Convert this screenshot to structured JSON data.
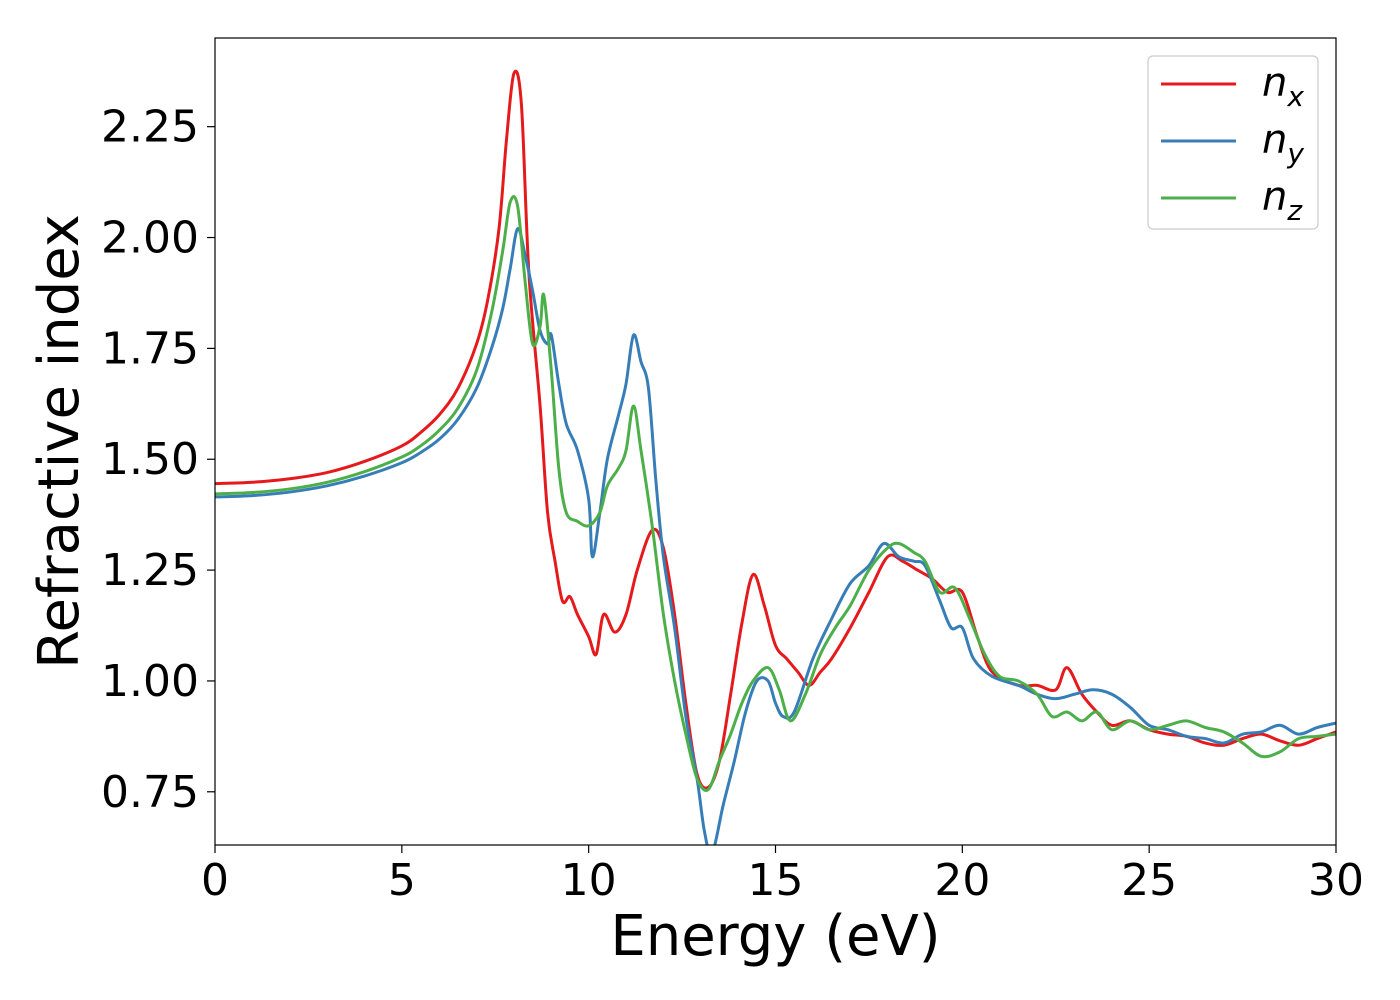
{
  "chart_data": {
    "type": "line",
    "title": "",
    "xlabel": "Energy (eV)",
    "ylabel": "Refractive index",
    "xlim": [
      0,
      30
    ],
    "ylim": [
      0.63,
      2.45
    ],
    "xticks": [
      0,
      5,
      10,
      15,
      20,
      25,
      30
    ],
    "yticks": [
      0.75,
      1.0,
      1.25,
      1.5,
      1.75,
      2.0,
      2.25
    ],
    "xtick_labels": [
      "0",
      "5",
      "10",
      "15",
      "20",
      "25",
      "30"
    ],
    "ytick_labels": [
      "0.75",
      "1.00",
      "1.25",
      "1.50",
      "1.75",
      "2.00",
      "2.25"
    ],
    "grid": false,
    "legend_position": "top-right",
    "series": [
      {
        "name": "n_x",
        "legend_main": "n",
        "legend_sub": "x",
        "color": "#e41a1c",
        "points": [
          [
            0,
            1.445
          ],
          [
            1,
            1.448
          ],
          [
            2,
            1.456
          ],
          [
            3,
            1.47
          ],
          [
            4,
            1.495
          ],
          [
            5,
            1.53
          ],
          [
            5.5,
            1.56
          ],
          [
            6,
            1.6
          ],
          [
            6.5,
            1.66
          ],
          [
            7,
            1.76
          ],
          [
            7.3,
            1.86
          ],
          [
            7.6,
            2.02
          ],
          [
            7.8,
            2.22
          ],
          [
            8.0,
            2.37
          ],
          [
            8.2,
            2.3
          ],
          [
            8.4,
            1.92
          ],
          [
            8.7,
            1.62
          ],
          [
            8.9,
            1.38
          ],
          [
            9.1,
            1.27
          ],
          [
            9.3,
            1.18
          ],
          [
            9.5,
            1.19
          ],
          [
            9.7,
            1.15
          ],
          [
            10.0,
            1.1
          ],
          [
            10.2,
            1.06
          ],
          [
            10.4,
            1.15
          ],
          [
            10.7,
            1.11
          ],
          [
            11.0,
            1.15
          ],
          [
            11.3,
            1.25
          ],
          [
            11.7,
            1.34
          ],
          [
            12.0,
            1.3
          ],
          [
            12.3,
            1.15
          ],
          [
            12.6,
            0.95
          ],
          [
            12.9,
            0.79
          ],
          [
            13.2,
            0.76
          ],
          [
            13.5,
            0.82
          ],
          [
            13.8,
            0.97
          ],
          [
            14.1,
            1.13
          ],
          [
            14.4,
            1.24
          ],
          [
            14.7,
            1.17
          ],
          [
            15.0,
            1.08
          ],
          [
            15.3,
            1.05
          ],
          [
            15.6,
            1.02
          ],
          [
            15.9,
            0.99
          ],
          [
            16.2,
            1.02
          ],
          [
            16.5,
            1.05
          ],
          [
            17.0,
            1.12
          ],
          [
            17.5,
            1.2
          ],
          [
            18.0,
            1.28
          ],
          [
            18.4,
            1.27
          ],
          [
            18.8,
            1.25
          ],
          [
            19.2,
            1.23
          ],
          [
            19.6,
            1.2
          ],
          [
            20.0,
            1.2
          ],
          [
            20.4,
            1.1
          ],
          [
            20.8,
            1.02
          ],
          [
            21.5,
            0.99
          ],
          [
            22.0,
            0.99
          ],
          [
            22.5,
            0.98
          ],
          [
            22.8,
            1.03
          ],
          [
            23.2,
            0.97
          ],
          [
            23.6,
            0.93
          ],
          [
            24.0,
            0.9
          ],
          [
            24.5,
            0.91
          ],
          [
            25.0,
            0.89
          ],
          [
            25.5,
            0.88
          ],
          [
            26.0,
            0.875
          ],
          [
            26.5,
            0.86
          ],
          [
            27.0,
            0.855
          ],
          [
            27.5,
            0.87
          ],
          [
            28.0,
            0.88
          ],
          [
            28.5,
            0.865
          ],
          [
            29.0,
            0.855
          ],
          [
            29.5,
            0.87
          ],
          [
            30,
            0.885
          ]
        ]
      },
      {
        "name": "n_y",
        "legend_main": "n",
        "legend_sub": "y",
        "color": "#377eb8",
        "points": [
          [
            0,
            1.415
          ],
          [
            1,
            1.418
          ],
          [
            2,
            1.426
          ],
          [
            3,
            1.44
          ],
          [
            4,
            1.462
          ],
          [
            5,
            1.492
          ],
          [
            5.5,
            1.515
          ],
          [
            6,
            1.545
          ],
          [
            6.5,
            1.59
          ],
          [
            7,
            1.66
          ],
          [
            7.4,
            1.75
          ],
          [
            7.7,
            1.84
          ],
          [
            7.9,
            1.93
          ],
          [
            8.1,
            2.02
          ],
          [
            8.3,
            1.96
          ],
          [
            8.5,
            1.88
          ],
          [
            8.7,
            1.79
          ],
          [
            8.9,
            1.76
          ],
          [
            9.0,
            1.78
          ],
          [
            9.2,
            1.67
          ],
          [
            9.4,
            1.58
          ],
          [
            9.7,
            1.52
          ],
          [
            10.0,
            1.41
          ],
          [
            10.1,
            1.28
          ],
          [
            10.3,
            1.38
          ],
          [
            10.5,
            1.5
          ],
          [
            10.8,
            1.6
          ],
          [
            11.0,
            1.67
          ],
          [
            11.2,
            1.78
          ],
          [
            11.4,
            1.72
          ],
          [
            11.6,
            1.66
          ],
          [
            11.8,
            1.45
          ],
          [
            12.0,
            1.28
          ],
          [
            12.3,
            1.12
          ],
          [
            12.6,
            0.92
          ],
          [
            12.9,
            0.78
          ],
          [
            13.1,
            0.66
          ],
          [
            13.3,
            0.61
          ],
          [
            13.6,
            0.72
          ],
          [
            13.9,
            0.82
          ],
          [
            14.2,
            0.93
          ],
          [
            14.5,
            1.0
          ],
          [
            14.8,
            1.0
          ],
          [
            15.0,
            0.95
          ],
          [
            15.2,
            0.92
          ],
          [
            15.5,
            0.93
          ],
          [
            16.0,
            1.05
          ],
          [
            16.5,
            1.14
          ],
          [
            17.0,
            1.22
          ],
          [
            17.5,
            1.26
          ],
          [
            17.9,
            1.31
          ],
          [
            18.3,
            1.28
          ],
          [
            18.7,
            1.27
          ],
          [
            19.0,
            1.26
          ],
          [
            19.4,
            1.18
          ],
          [
            19.7,
            1.12
          ],
          [
            20.0,
            1.12
          ],
          [
            20.3,
            1.05
          ],
          [
            20.8,
            1.01
          ],
          [
            21.5,
            0.99
          ],
          [
            22.0,
            0.97
          ],
          [
            22.5,
            0.96
          ],
          [
            23.0,
            0.97
          ],
          [
            23.5,
            0.98
          ],
          [
            24.0,
            0.97
          ],
          [
            24.5,
            0.94
          ],
          [
            25.0,
            0.9
          ],
          [
            25.5,
            0.89
          ],
          [
            26.0,
            0.875
          ],
          [
            26.5,
            0.87
          ],
          [
            27.0,
            0.86
          ],
          [
            27.5,
            0.88
          ],
          [
            28.0,
            0.885
          ],
          [
            28.5,
            0.9
          ],
          [
            29.0,
            0.88
          ],
          [
            29.5,
            0.895
          ],
          [
            30,
            0.905
          ]
        ]
      },
      {
        "name": "n_z",
        "legend_main": "n",
        "legend_sub": "z",
        "color": "#4daf4a",
        "points": [
          [
            0,
            1.422
          ],
          [
            1,
            1.425
          ],
          [
            2,
            1.433
          ],
          [
            3,
            1.448
          ],
          [
            4,
            1.472
          ],
          [
            5,
            1.505
          ],
          [
            5.5,
            1.53
          ],
          [
            6,
            1.565
          ],
          [
            6.5,
            1.615
          ],
          [
            7,
            1.7
          ],
          [
            7.4,
            1.83
          ],
          [
            7.7,
            1.97
          ],
          [
            7.9,
            2.08
          ],
          [
            8.1,
            2.07
          ],
          [
            8.3,
            1.9
          ],
          [
            8.5,
            1.76
          ],
          [
            8.7,
            1.8
          ],
          [
            8.8,
            1.87
          ],
          [
            9.0,
            1.7
          ],
          [
            9.2,
            1.48
          ],
          [
            9.4,
            1.38
          ],
          [
            9.7,
            1.36
          ],
          [
            10.0,
            1.35
          ],
          [
            10.3,
            1.38
          ],
          [
            10.5,
            1.44
          ],
          [
            10.8,
            1.48
          ],
          [
            11.0,
            1.52
          ],
          [
            11.2,
            1.62
          ],
          [
            11.4,
            1.52
          ],
          [
            11.7,
            1.35
          ],
          [
            12.0,
            1.15
          ],
          [
            12.3,
            1.0
          ],
          [
            12.6,
            0.88
          ],
          [
            12.9,
            0.78
          ],
          [
            13.2,
            0.755
          ],
          [
            13.5,
            0.82
          ],
          [
            13.8,
            0.88
          ],
          [
            14.1,
            0.95
          ],
          [
            14.4,
            1.0
          ],
          [
            14.8,
            1.03
          ],
          [
            15.1,
            0.98
          ],
          [
            15.4,
            0.91
          ],
          [
            15.8,
            0.97
          ],
          [
            16.2,
            1.06
          ],
          [
            16.6,
            1.12
          ],
          [
            17.0,
            1.17
          ],
          [
            17.5,
            1.25
          ],
          [
            18.0,
            1.3
          ],
          [
            18.3,
            1.31
          ],
          [
            18.7,
            1.29
          ],
          [
            19.0,
            1.27
          ],
          [
            19.4,
            1.2
          ],
          [
            19.8,
            1.21
          ],
          [
            20.2,
            1.14
          ],
          [
            20.6,
            1.06
          ],
          [
            21.0,
            1.01
          ],
          [
            21.5,
            1.0
          ],
          [
            22.0,
            0.97
          ],
          [
            22.4,
            0.92
          ],
          [
            22.8,
            0.93
          ],
          [
            23.2,
            0.91
          ],
          [
            23.6,
            0.93
          ],
          [
            24.0,
            0.89
          ],
          [
            24.5,
            0.91
          ],
          [
            25.0,
            0.89
          ],
          [
            25.5,
            0.9
          ],
          [
            26.0,
            0.91
          ],
          [
            26.5,
            0.895
          ],
          [
            27.0,
            0.885
          ],
          [
            27.5,
            0.86
          ],
          [
            28.0,
            0.83
          ],
          [
            28.5,
            0.84
          ],
          [
            29.0,
            0.87
          ],
          [
            29.5,
            0.875
          ],
          [
            30,
            0.88
          ]
        ]
      }
    ]
  }
}
